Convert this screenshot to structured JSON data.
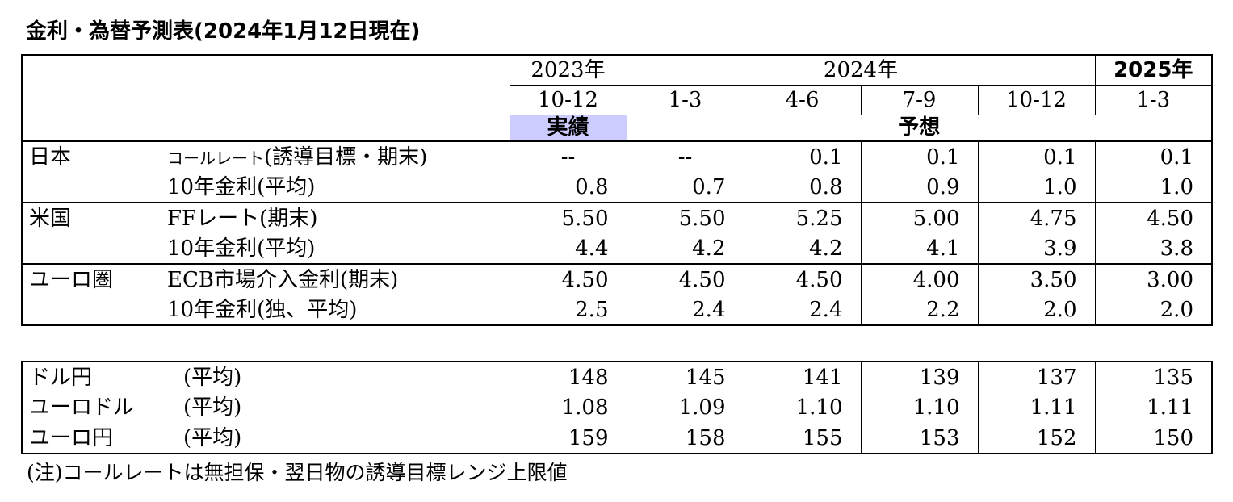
{
  "title": "金利・為替予測表(2024年1月12日現在)",
  "header": {
    "year_2023": "2023年",
    "year_2024": "2024年",
    "year_2025": "2025年",
    "periods": [
      "10-12",
      "1-3",
      "4-6",
      "7-9",
      "10-12",
      "1-3"
    ],
    "actual_label": "実績",
    "forecast_label": "予想"
  },
  "rates": {
    "japan": {
      "region": "日本",
      "row1": {
        "label_small": "コールレート",
        "label_rest": "(誘導目標・期末)",
        "values": [
          "--",
          "--",
          "0.1",
          "0.1",
          "0.1",
          "0.1"
        ]
      },
      "row2": {
        "label": "10年金利(平均)",
        "values": [
          "0.8",
          "0.7",
          "0.8",
          "0.9",
          "1.0",
          "1.0"
        ]
      }
    },
    "us": {
      "region": "米国",
      "row1": {
        "label": "FFレート(期末)",
        "values": [
          "5.50",
          "5.50",
          "5.25",
          "5.00",
          "4.75",
          "4.50"
        ]
      },
      "row2": {
        "label": "10年金利(平均)",
        "values": [
          "4.4",
          "4.2",
          "4.2",
          "4.1",
          "3.9",
          "3.8"
        ]
      }
    },
    "euro": {
      "region": "ユーロ圏",
      "row1": {
        "label": "ECB市場介入金利(期末)",
        "values": [
          "4.50",
          "4.50",
          "4.50",
          "4.00",
          "3.50",
          "3.00"
        ]
      },
      "row2": {
        "label": "10年金利(独、平均)",
        "values": [
          "2.5",
          "2.4",
          "2.4",
          "2.2",
          "2.0",
          "2.0"
        ]
      }
    }
  },
  "fx": [
    {
      "pair": "ドル円",
      "label": "(平均)",
      "values": [
        "148",
        "145",
        "141",
        "139",
        "137",
        "135"
      ]
    },
    {
      "pair": "ユーロドル",
      "label": "(平均)",
      "values": [
        "1.08",
        "1.09",
        "1.10",
        "1.10",
        "1.11",
        "1.11"
      ]
    },
    {
      "pair": "ユーロ円",
      "label": "(平均)",
      "values": [
        "159",
        "158",
        "155",
        "153",
        "152",
        "150"
      ]
    }
  ],
  "note": "(注)コールレートは無担保・翌日物の誘導目標レンジ上限値"
}
